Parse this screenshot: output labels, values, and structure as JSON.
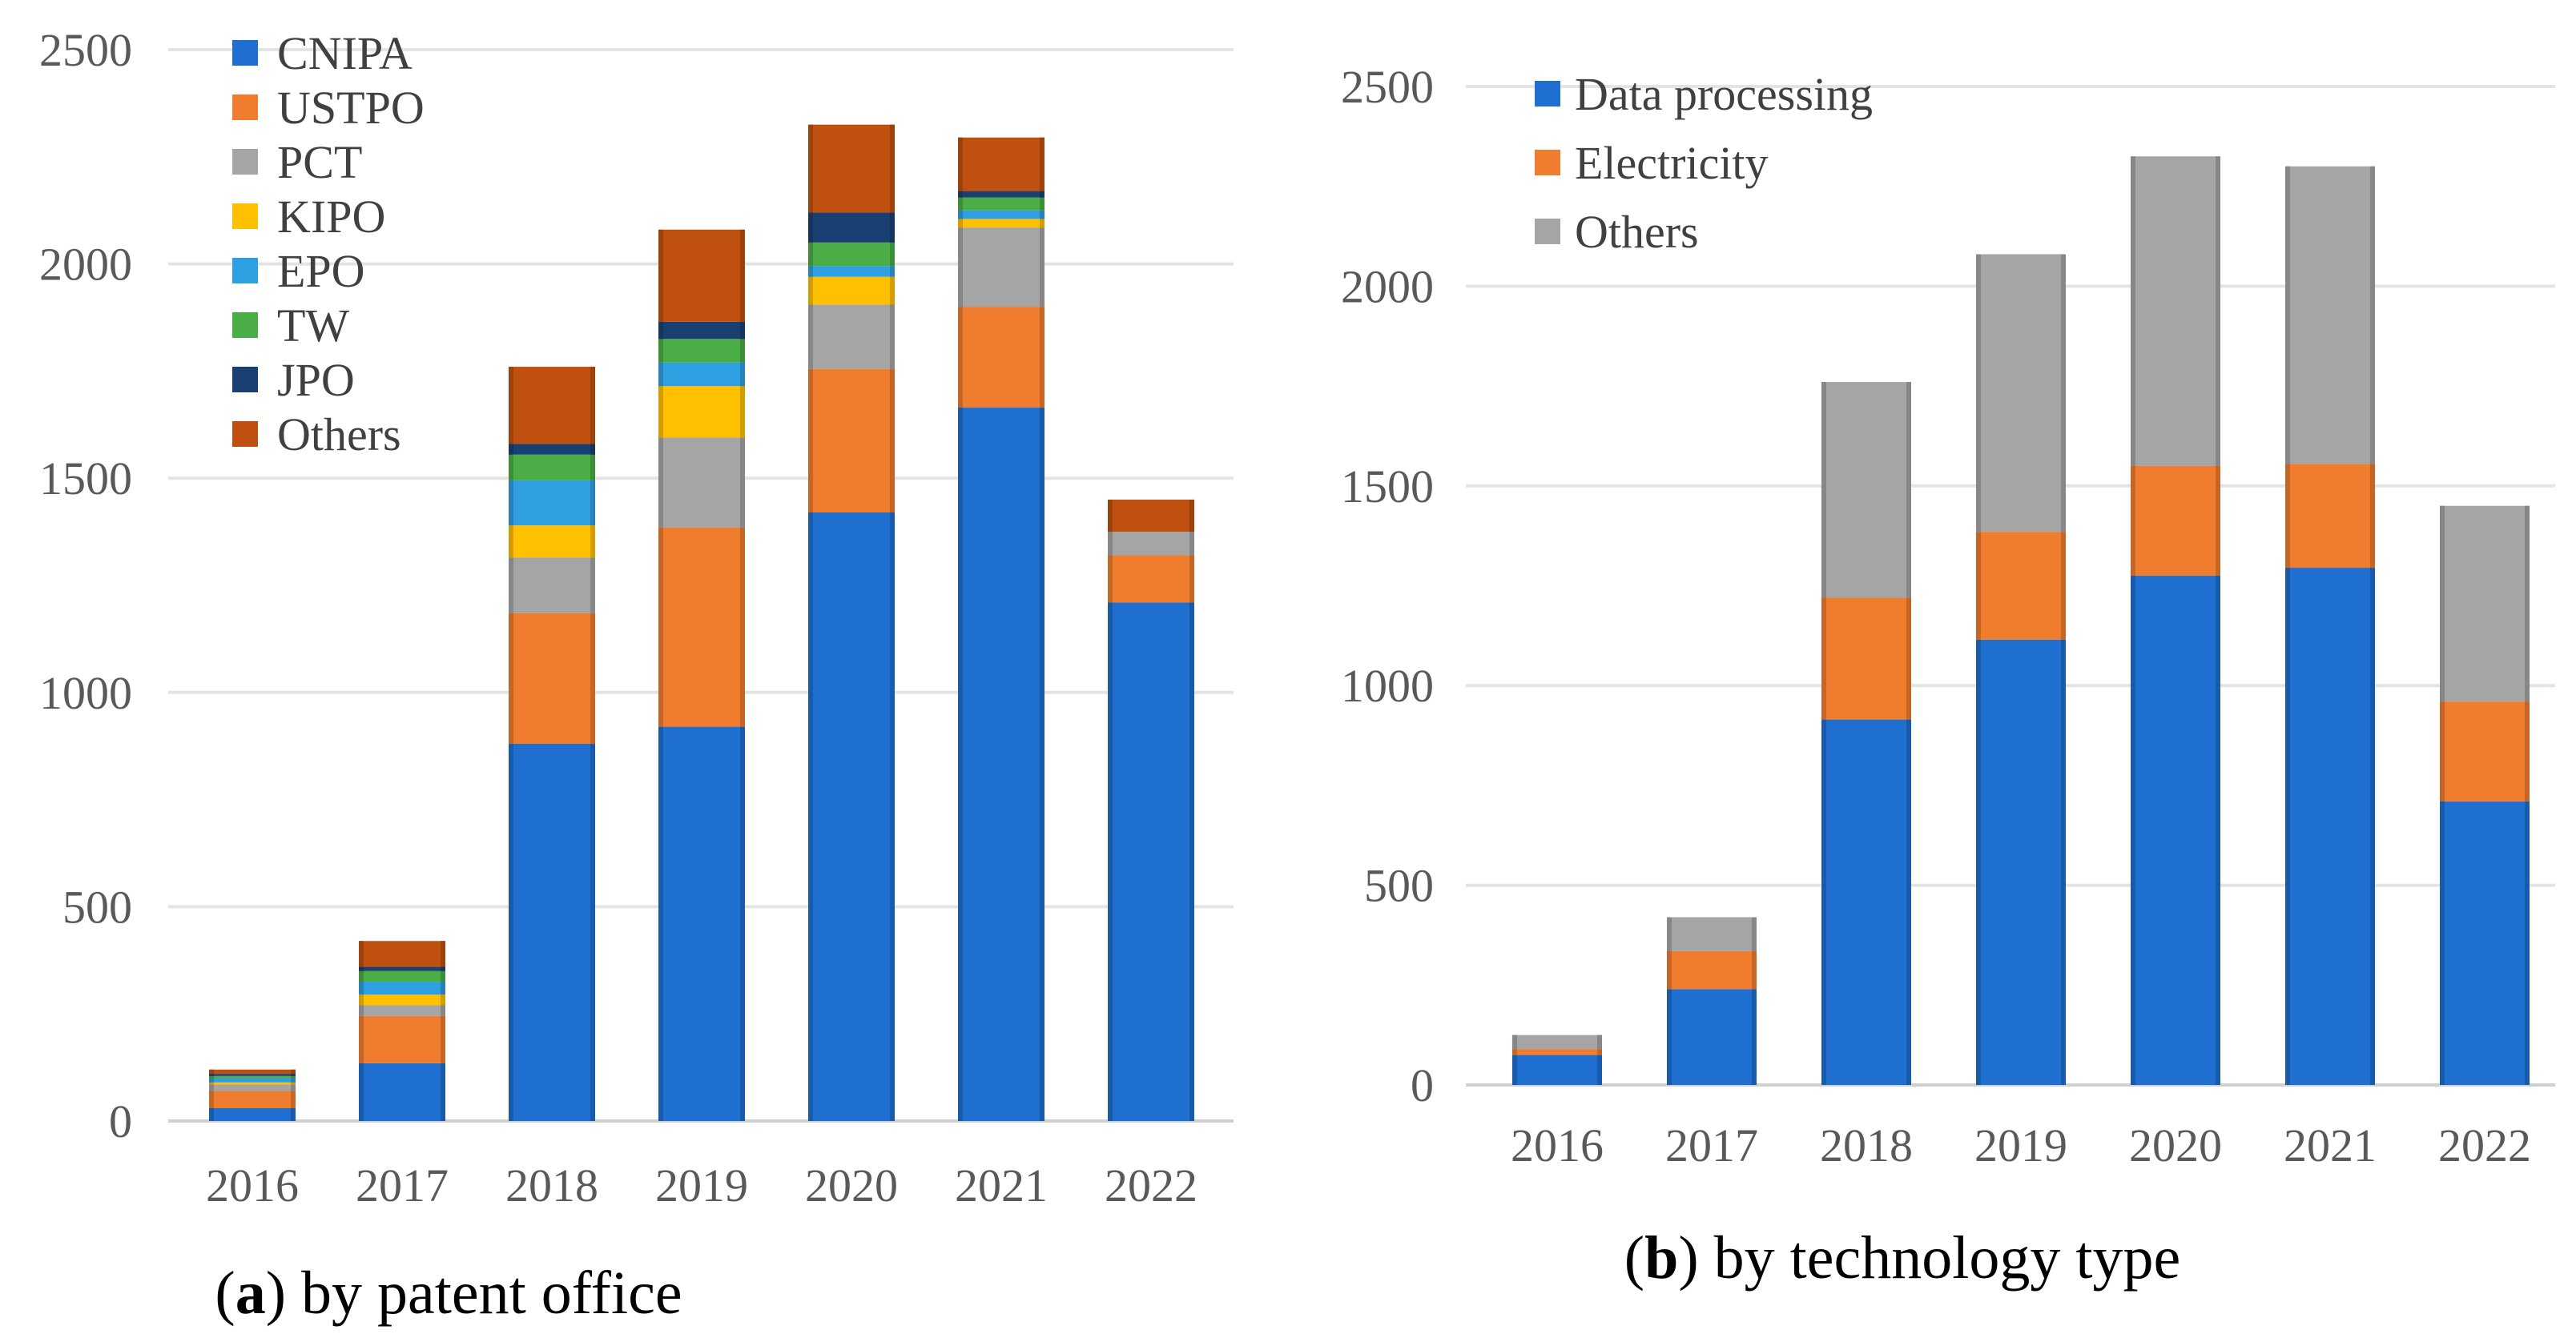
{
  "chart_data": [
    {
      "type": "bar",
      "stacked": true,
      "title": "",
      "caption_label": "a",
      "caption_text": "by patent office",
      "xlabel": "",
      "ylabel": "",
      "ylim": [
        0,
        2500
      ],
      "yticks": [
        0,
        500,
        1000,
        1500,
        2000,
        2500
      ],
      "grid": true,
      "legend_position": "top-left",
      "categories": [
        "2016",
        "2017",
        "2018",
        "2019",
        "2020",
        "2021",
        "2022"
      ],
      "series": [
        {
          "name": "CNIPA",
          "color": "#1f6fd1",
          "values": [
            30,
            135,
            880,
            920,
            1420,
            1665,
            1210
          ]
        },
        {
          "name": "USTPO",
          "color": "#f07c2e",
          "values": [
            40,
            110,
            305,
            465,
            335,
            235,
            110
          ]
        },
        {
          "name": "PCT",
          "color": "#a5a5a5",
          "values": [
            15,
            25,
            130,
            210,
            150,
            185,
            55
          ]
        },
        {
          "name": "KIPO",
          "color": "#ffc000",
          "values": [
            5,
            25,
            75,
            120,
            65,
            20,
            0
          ]
        },
        {
          "name": "EPO",
          "color": "#2e9fe0",
          "values": [
            10,
            30,
            105,
            55,
            25,
            20,
            0
          ]
        },
        {
          "name": "TW",
          "color": "#4aad45",
          "values": [
            5,
            25,
            60,
            55,
            55,
            30,
            0
          ]
        },
        {
          "name": "JPO",
          "color": "#1a3f73",
          "values": [
            5,
            10,
            25,
            40,
            70,
            15,
            0
          ]
        },
        {
          "name": "Others",
          "color": "#c0500f",
          "values": [
            10,
            60,
            180,
            215,
            205,
            125,
            75
          ]
        }
      ]
    },
    {
      "type": "bar",
      "stacked": true,
      "title": "",
      "caption_label": "b",
      "caption_text": "by technology type",
      "xlabel": "",
      "ylabel": "",
      "ylim": [
        0,
        2500
      ],
      "yticks": [
        0,
        500,
        1000,
        1500,
        2000,
        2500
      ],
      "grid": true,
      "legend_position": "top-left",
      "categories": [
        "2016",
        "2017",
        "2018",
        "2019",
        "2020",
        "2021",
        "2022"
      ],
      "series": [
        {
          "name": "Data processing",
          "color": "#1f6fd1",
          "values": [
            75,
            240,
            915,
            1115,
            1275,
            1295,
            710
          ]
        },
        {
          "name": "Electricity",
          "color": "#f07c2e",
          "values": [
            15,
            95,
            305,
            270,
            275,
            260,
            250
          ]
        },
        {
          "name": "Others",
          "color": "#a5a5a5",
          "values": [
            35,
            85,
            540,
            695,
            775,
            745,
            490
          ]
        }
      ]
    }
  ]
}
